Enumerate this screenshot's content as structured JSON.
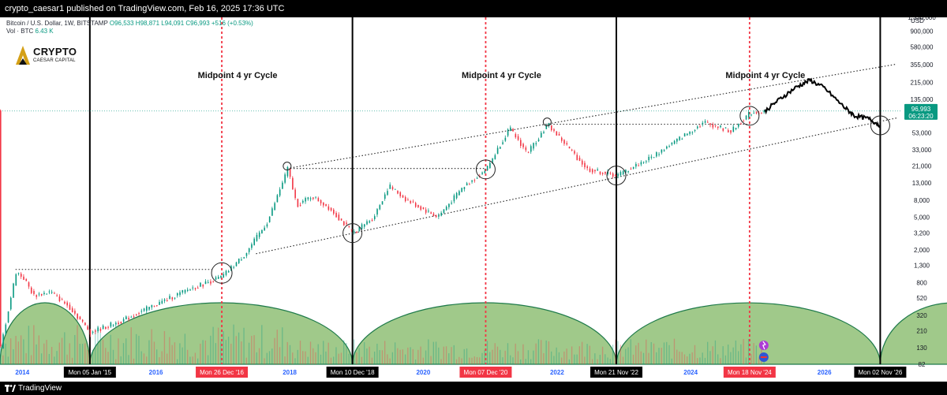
{
  "header": {
    "text": "crypto_caesar1 published on TradingView.com, Feb 16, 2025 17:36 UTC"
  },
  "footer": {
    "brand": "TradingView"
  },
  "legend": {
    "symbol": "Bitcoin / U.S. Dollar, 1W, BITSTAMP",
    "ohlc": "O96,533  H98,871  L94,091  C96,993  +516 (+0.53%)",
    "vol_label": "Vol · BTC",
    "vol_value": "6.43 K"
  },
  "logo": {
    "title": "CRYPTO",
    "subtitle": "CAESAR CAPITAL"
  },
  "price_scale": {
    "currency": "USD",
    "ticks": [
      "1,330,000",
      "900,000",
      "580,000",
      "355,000",
      "215,000",
      "135,000",
      "53,000",
      "33,000",
      "21,000",
      "13,000",
      "8,000",
      "5,000",
      "3,200",
      "2,000",
      "1,300",
      "800",
      "520",
      "320",
      "210",
      "130",
      "82"
    ],
    "last_price": "96,993",
    "countdown": "06:23:20"
  },
  "time_axis": {
    "year_labels": [
      "2014",
      "2016",
      "2018",
      "2020",
      "2022",
      "2024",
      "2026",
      "202"
    ],
    "cycle_dates": [
      {
        "label": "Mon 05 Jan '15",
        "kind": "bottom"
      },
      {
        "label": "Mon 26 Dec '16",
        "kind": "midpoint"
      },
      {
        "label": "Mon 10 Dec '18",
        "kind": "bottom"
      },
      {
        "label": "Mon 07 Dec '20",
        "kind": "midpoint"
      },
      {
        "label": "Mon 21 Nov '22",
        "kind": "bottom"
      },
      {
        "label": "Mon 18 Nov '24",
        "kind": "midpoint"
      },
      {
        "label": "Mon 02 Nov '26",
        "kind": "bottom"
      }
    ]
  },
  "annotations": {
    "midpoint_label": "Midpoint 4 yr Cycle"
  },
  "colors": {
    "up": "#089981",
    "down": "#f23645",
    "midpoint_line": "#f23645",
    "cycle_line": "#000000",
    "arc_fill": "#8fbf76",
    "arc_edge": "#1e7a4a",
    "axis_label": "#2962ff"
  },
  "chart_data": {
    "type": "line",
    "title": "Bitcoin / U.S. Dollar, 1W, BITSTAMP",
    "xlabel": "",
    "ylabel": "USD",
    "y_scale": "log",
    "ylim": [
      82,
      1330000
    ],
    "series": [
      {
        "points": [
          [
            "2013-09-01",
            130
          ],
          [
            "2013-11-25",
            1100
          ],
          [
            "2014-01-06",
            900
          ],
          [
            "2014-03-01",
            560
          ],
          [
            "2014-06-01",
            620
          ],
          [
            "2014-09-15",
            400
          ],
          [
            "2015-01-05",
            200
          ],
          [
            "2015-07-01",
            280
          ],
          [
            "2015-11-01",
            380
          ],
          [
            "2016-06-15",
            650
          ],
          [
            "2016-12-26",
            950
          ],
          [
            "2017-05-01",
            1800
          ],
          [
            "2017-09-01",
            4500
          ],
          [
            "2017-12-18",
            19500
          ],
          [
            "2018-02-05",
            7000
          ],
          [
            "2018-05-01",
            9000
          ],
          [
            "2018-08-01",
            6500
          ],
          [
            "2018-12-10",
            3200
          ],
          [
            "2019-04-01",
            5000
          ],
          [
            "2019-06-24",
            12000
          ],
          [
            "2019-09-30",
            8000
          ],
          [
            "2020-03-16",
            5000
          ],
          [
            "2020-08-01",
            11500
          ],
          [
            "2020-12-07",
            19000
          ],
          [
            "2021-04-12",
            60000
          ],
          [
            "2021-07-19",
            30000
          ],
          [
            "2021-11-08",
            67000
          ],
          [
            "2022-06-13",
            19000
          ],
          [
            "2022-11-21",
            16000
          ],
          [
            "2023-06-01",
            27000
          ],
          [
            "2024-03-11",
            71000
          ],
          [
            "2024-08-05",
            55000
          ],
          [
            "2024-11-18",
            92000
          ],
          [
            "2025-02-10",
            96993
          ]
        ]
      },
      {
        "points": [
          [
            "2025-02-10",
            97000
          ],
          [
            "2025-05-01",
            135000
          ],
          [
            "2025-08-01",
            190000
          ],
          [
            "2025-10-15",
            230000
          ],
          [
            "2026-01-01",
            185000
          ],
          [
            "2026-04-15",
            110000
          ],
          [
            "2026-06-15",
            85000
          ],
          [
            "2026-09-01",
            78000
          ],
          [
            "2026-11-02",
            65000
          ]
        ]
      }
    ],
    "cycle_lines": [
      "2015-01-05",
      "2018-12-10",
      "2022-11-21",
      "2026-11-02"
    ],
    "midpoint_lines": [
      "2016-12-26",
      "2020-12-07",
      "2024-11-18"
    ],
    "trend_channel": {
      "upper": [
        [
          "2017-12-18",
          19500
        ],
        [
          "2027-02-01",
          360000
        ]
      ],
      "lower": [
        [
          "2017-07-01",
          1800
        ],
        [
          "2027-02-01",
          80000
        ]
      ]
    },
    "horizontal_levels": [
      {
        "value": 1160,
        "from": "2013-11-25",
        "to": "2016-11-01"
      },
      {
        "value": 19500,
        "from": "2017-12-18",
        "to": "2020-12-07"
      },
      {
        "value": 67000,
        "from": "2021-11-08",
        "to": "2024-11-18"
      }
    ],
    "grid": false
  }
}
